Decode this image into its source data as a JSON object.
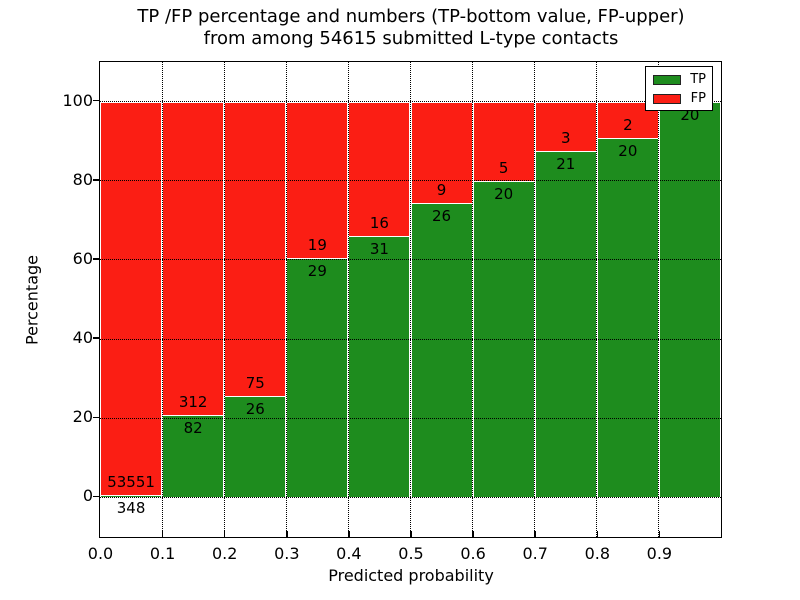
{
  "title": {
    "line1": "TP /FP percentage and numbers (TP-bottom value, FP-upper)",
    "line2": "from among 54615 submitted L-type contacts"
  },
  "axes": {
    "xlabel": "Predicted probability",
    "ylabel": "Percentage"
  },
  "colors": {
    "tp": "#1e8c1e",
    "fp": "#fb1e14",
    "bar_edge": "#ffffff",
    "grid": "#000000",
    "spine": "#000000",
    "text": "#000000",
    "legend_bg": "#ffffff",
    "legend_border": "#000000"
  },
  "chart_data": {
    "type": "bar",
    "stacked": true,
    "unit": "percent",
    "title": "TP /FP percentage and numbers (TP-bottom value, FP-upper) from among 54615 submitted L-type contacts",
    "xlabel": "Predicted probability",
    "ylabel": "Percentage",
    "total_submitted": 54615,
    "xlim": [
      0.0,
      1.0
    ],
    "ylim": [
      -10,
      110
    ],
    "bar_width": 0.1,
    "grid": true,
    "legend_position": "upper right",
    "x_tick_labels": [
      "0.0",
      "0.1",
      "0.2",
      "0.3",
      "0.4",
      "0.5",
      "0.6",
      "0.7",
      "0.8",
      "0.9"
    ],
    "y_tick_values": [
      0,
      20,
      40,
      60,
      80,
      100
    ],
    "series": [
      {
        "name": "TP",
        "color": "#1e8c1e"
      },
      {
        "name": "FP",
        "color": "#fb1e14"
      }
    ],
    "bins": [
      {
        "x_start": 0.0,
        "x_end": 0.1,
        "tp": 348,
        "fp": 53551,
        "tp_percent": 0.65,
        "fp_percent": 99.35
      },
      {
        "x_start": 0.1,
        "x_end": 0.2,
        "tp": 82,
        "fp": 312,
        "tp_percent": 20.81,
        "fp_percent": 79.19
      },
      {
        "x_start": 0.2,
        "x_end": 0.3,
        "tp": 26,
        "fp": 75,
        "tp_percent": 25.74,
        "fp_percent": 74.26
      },
      {
        "x_start": 0.3,
        "x_end": 0.4,
        "tp": 29,
        "fp": 19,
        "tp_percent": 60.42,
        "fp_percent": 39.58
      },
      {
        "x_start": 0.4,
        "x_end": 0.5,
        "tp": 31,
        "fp": 16,
        "tp_percent": 65.96,
        "fp_percent": 34.04
      },
      {
        "x_start": 0.5,
        "x_end": 0.6,
        "tp": 26,
        "fp": 9,
        "tp_percent": 74.29,
        "fp_percent": 25.71
      },
      {
        "x_start": 0.6,
        "x_end": 0.7,
        "tp": 20,
        "fp": 5,
        "tp_percent": 80.0,
        "fp_percent": 20.0
      },
      {
        "x_start": 0.7,
        "x_end": 0.8,
        "tp": 21,
        "fp": 3,
        "tp_percent": 87.5,
        "fp_percent": 12.5
      },
      {
        "x_start": 0.8,
        "x_end": 0.9,
        "tp": 20,
        "fp": 2,
        "tp_percent": 90.91,
        "fp_percent": 9.09
      },
      {
        "x_start": 0.9,
        "x_end": 1.0,
        "tp": 20,
        "fp": 0,
        "tp_percent": 100.0,
        "fp_percent": 0.0
      }
    ]
  }
}
